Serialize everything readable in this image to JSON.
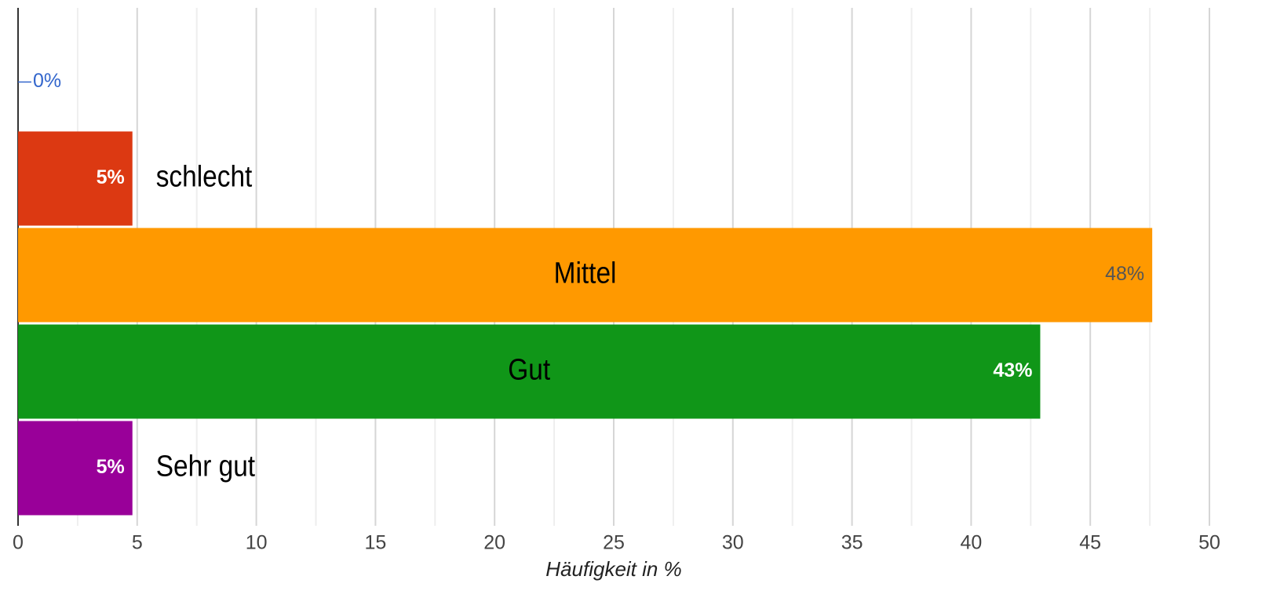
{
  "chart_data": {
    "type": "bar",
    "orientation": "horizontal",
    "categories": [
      null,
      "schlecht",
      "Mittel",
      "Gut",
      "Sehr gut"
    ],
    "values": [
      0,
      4.8,
      47.6,
      42.9,
      4.8
    ],
    "value_labels": [
      "0%",
      "5%",
      "48%",
      "43%",
      "5%"
    ],
    "colors": [
      "#3366cc",
      "#dc3912",
      "#ff9900",
      "#109618",
      "#990099"
    ],
    "xlabel": "Häufigkeit in %",
    "xlim": [
      0,
      50
    ],
    "xticks": [
      0,
      5,
      10,
      15,
      20,
      25,
      30,
      35,
      40,
      45,
      50
    ],
    "grid": true
  }
}
